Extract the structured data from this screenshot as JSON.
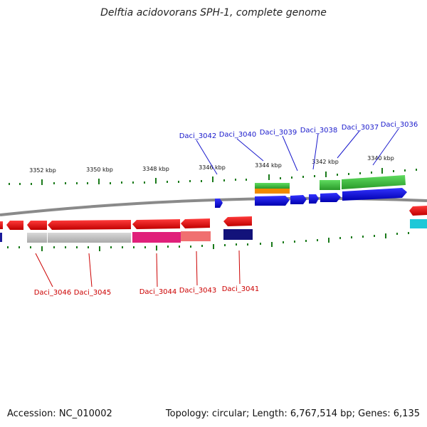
{
  "title": "Delftia acidovorans SPH-1, complete genome",
  "footer": {
    "accession": "Accession: NC_010002",
    "summary": "Topology: circular; Length: 6,767,514 bp; Genes: 6,135"
  },
  "scale_labels": [
    "3352 kbp",
    "3350 kbp",
    "3348 kbp",
    "3346 kbp",
    "3344 kbp",
    "3342 kbp",
    "3340 kbp"
  ],
  "genes_top": [
    "Daci_3042",
    "Daci_3040",
    "Daci_3039",
    "Daci_3038",
    "Daci_3037",
    "Daci_3036"
  ],
  "genes_bottom": [
    "Daci_3046",
    "Daci_3045",
    "Daci_3044",
    "Daci_3043",
    "Daci_3041"
  ],
  "colors": {
    "top_label": "#1a1acc",
    "bottom_label": "#cc0000",
    "forward_gene": "#0000ee",
    "reverse_gene": "#ee0000",
    "backbone": "#888888",
    "tick": "#1a7a1a"
  }
}
